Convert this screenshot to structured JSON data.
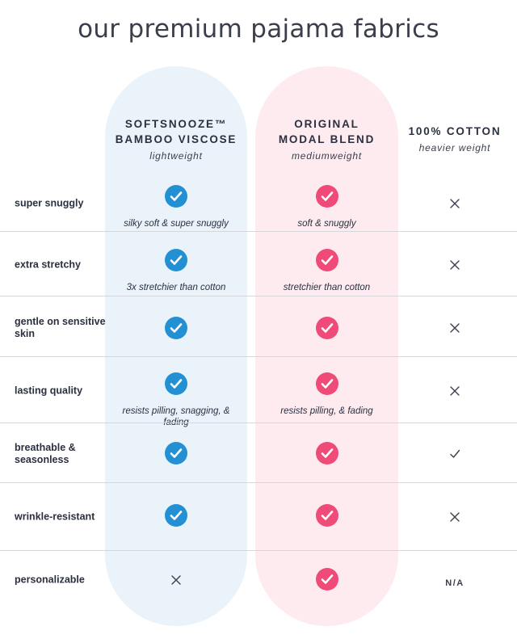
{
  "title": "our premium pajama fabrics",
  "columns": {
    "bamboo": {
      "name_line1": "SOFTSNOOZE™",
      "name_line2": "BAMBOO VISCOSE",
      "weight": "lightweight",
      "accent": "#2390d4",
      "bg": "#e9f3f9"
    },
    "modal": {
      "name_line1": "ORIGINAL",
      "name_line2": "MODAL BLEND",
      "weight": "mediumweight",
      "accent": "#ef4a78",
      "bg": "#fdebef"
    },
    "cotton": {
      "name_line1": "100% COTTON",
      "weight": "heavier weight"
    }
  },
  "rows": [
    {
      "feature": "super snuggly",
      "bamboo": {
        "mark": "check-icon",
        "note": "silky soft & super snuggly"
      },
      "modal": {
        "mark": "check-icon",
        "note": "soft & snuggly"
      },
      "cotton": {
        "mark": "x-icon"
      }
    },
    {
      "feature": "extra stretchy",
      "bamboo": {
        "mark": "check-icon",
        "note": "3x stretchier than cotton"
      },
      "modal": {
        "mark": "check-icon",
        "note": "stretchier than cotton"
      },
      "cotton": {
        "mark": "x-icon"
      }
    },
    {
      "feature": "gentle on sensitive skin",
      "bamboo": {
        "mark": "check-icon"
      },
      "modal": {
        "mark": "check-icon"
      },
      "cotton": {
        "mark": "x-icon"
      }
    },
    {
      "feature": "lasting quality",
      "bamboo": {
        "mark": "check-icon",
        "note": "resists pilling, snagging, & fading"
      },
      "modal": {
        "mark": "check-icon",
        "note": "resists pilling, & fading"
      },
      "cotton": {
        "mark": "x-icon"
      }
    },
    {
      "feature": "breathable & seasonless",
      "bamboo": {
        "mark": "check-icon"
      },
      "modal": {
        "mark": "check-icon"
      },
      "cotton": {
        "mark": "small-check-icon"
      }
    },
    {
      "feature": "wrinkle-resistant",
      "bamboo": {
        "mark": "check-icon"
      },
      "modal": {
        "mark": "check-icon"
      },
      "cotton": {
        "mark": "x-icon"
      }
    },
    {
      "feature": "personalizable",
      "bamboo": {
        "mark": "x-icon"
      },
      "modal": {
        "mark": "check-icon"
      },
      "cotton": {
        "text": "N/A"
      }
    }
  ]
}
